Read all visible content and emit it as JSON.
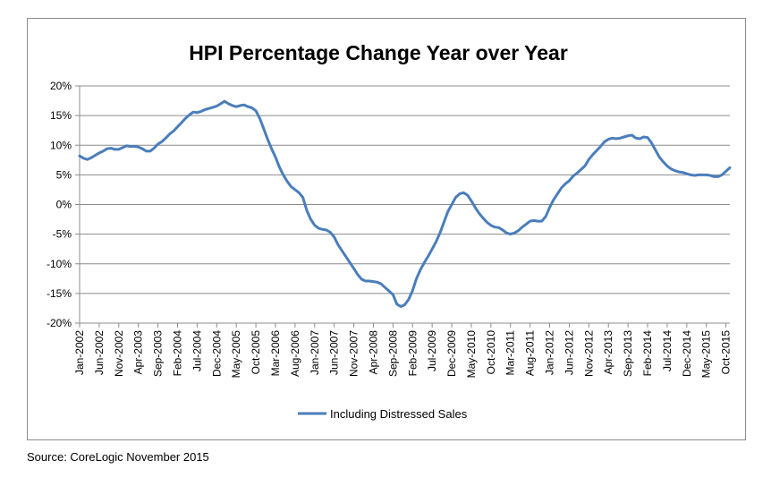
{
  "source": "Source: CoreLogic November 2015",
  "chart_data": {
    "type": "line",
    "title": "HPI Percentage Change Year over Year",
    "xlabel": "",
    "ylabel": "",
    "ylim": [
      -20,
      20
    ],
    "y_ticks": [
      20,
      15,
      10,
      5,
      0,
      -5,
      -10,
      -15,
      -20
    ],
    "y_tick_labels": [
      "20%",
      "15%",
      "10%",
      "5%",
      "0%",
      "-5%",
      "-10%",
      "-15%",
      "-20%"
    ],
    "x_tick_labels": [
      "Jan-2002",
      "Jun-2002",
      "Nov-2002",
      "Apr-2003",
      "Sep-2003",
      "Feb-2004",
      "Jul-2004",
      "Dec-2004",
      "May-2005",
      "Oct-2005",
      "Mar-2006",
      "Aug-2006",
      "Jan-2007",
      "Jun-2007",
      "Nov-2007",
      "Apr-2008",
      "Sep-2008",
      "Feb-2009",
      "Jul-2009",
      "Dec-2009",
      "May-2010",
      "Oct-2010",
      "Mar-2011",
      "Aug-2011",
      "Jan-2012",
      "Jun-2012",
      "Nov-2012",
      "Apr-2013",
      "Sep-2013",
      "Feb-2014",
      "Jul-2014",
      "Dec-2014",
      "May-2015",
      "Oct-2015"
    ],
    "grid": true,
    "legend_position": "bottom",
    "series": [
      {
        "name": "Including Distressed Sales",
        "color": "#4a7ebb",
        "x_start": "Jan-2002",
        "frequency": "monthly",
        "values": [
          8.2,
          7.8,
          7.6,
          7.9,
          8.3,
          8.7,
          9.0,
          9.4,
          9.5,
          9.3,
          9.3,
          9.6,
          9.9,
          9.8,
          9.8,
          9.7,
          9.4,
          9.0,
          9.0,
          9.5,
          10.2,
          10.6,
          11.2,
          11.9,
          12.4,
          13.1,
          13.8,
          14.5,
          15.1,
          15.6,
          15.5,
          15.7,
          16.0,
          16.2,
          16.4,
          16.6,
          17.0,
          17.4,
          17.0,
          16.7,
          16.5,
          16.7,
          16.8,
          16.5,
          16.3,
          15.8,
          14.5,
          12.8,
          11.0,
          9.4,
          8.0,
          6.3,
          5.0,
          3.9,
          3.0,
          2.5,
          2.0,
          1.2,
          -1.0,
          -2.5,
          -3.5,
          -4.0,
          -4.2,
          -4.3,
          -4.7,
          -5.5,
          -6.8,
          -7.8,
          -8.8,
          -9.8,
          -10.8,
          -11.8,
          -12.6,
          -12.9,
          -12.9,
          -13.0,
          -13.1,
          -13.4,
          -14.0,
          -14.6,
          -15.2,
          -16.8,
          -17.2,
          -16.9,
          -16.0,
          -14.5,
          -12.5,
          -11.0,
          -9.8,
          -8.7,
          -7.5,
          -6.3,
          -4.8,
          -3.0,
          -1.2,
          0.0,
          1.2,
          1.8,
          2.0,
          1.6,
          0.6,
          -0.5,
          -1.5,
          -2.3,
          -3.0,
          -3.5,
          -3.8,
          -3.9,
          -4.3,
          -4.8,
          -5.0,
          -4.8,
          -4.4,
          -3.8,
          -3.3,
          -2.8,
          -2.7,
          -2.8,
          -2.8,
          -2.0,
          -0.5,
          0.8,
          1.8,
          2.8,
          3.5,
          4.0,
          4.8,
          5.3,
          5.9,
          6.5,
          7.6,
          8.4,
          9.1,
          9.8,
          10.6,
          11.0,
          11.2,
          11.1,
          11.2,
          11.4,
          11.6,
          11.7,
          11.2,
          11.1,
          11.4,
          11.3,
          10.4,
          9.2,
          8.0,
          7.2,
          6.5,
          6.0,
          5.7,
          5.5,
          5.4,
          5.2,
          5.0,
          4.9,
          5.0,
          5.0,
          5.0,
          4.9,
          4.7,
          4.7,
          5.0,
          5.6,
          6.2
        ]
      }
    ]
  }
}
